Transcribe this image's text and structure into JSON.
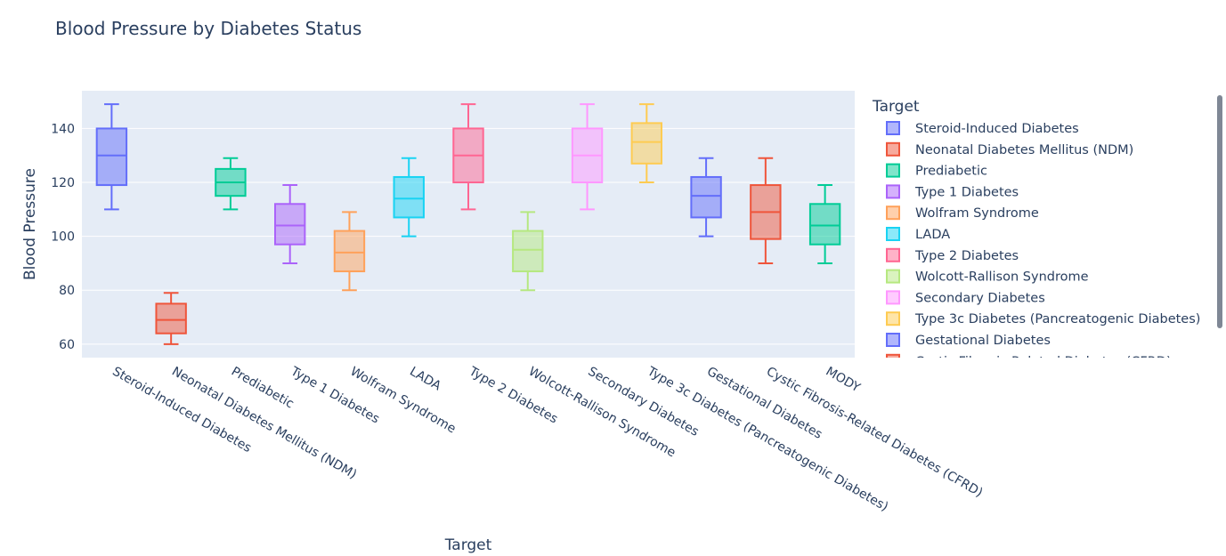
{
  "chart_data": {
    "type": "box",
    "title": "Blood Pressure by Diabetes Status",
    "xlabel": "Target",
    "ylabel": "Blood Pressure",
    "ylim": [
      55,
      154
    ],
    "yticks": [
      60,
      80,
      100,
      120,
      140
    ],
    "grid": true,
    "legend": {
      "title": "Target",
      "placement": "right"
    },
    "series": [
      {
        "name": "Steroid-Induced Diabetes",
        "color": "#636efa",
        "min": 110,
        "q1": 119,
        "median": 130,
        "q3": 140,
        "max": 149
      },
      {
        "name": "Neonatal Diabetes Mellitus (NDM)",
        "color": "#EF553B",
        "min": 60,
        "q1": 64,
        "median": 69,
        "q3": 75,
        "max": 79
      },
      {
        "name": "Prediabetic",
        "color": "#00cc96",
        "min": 110,
        "q1": 115,
        "median": 120,
        "q3": 125,
        "max": 129
      },
      {
        "name": "Type 1 Diabetes",
        "color": "#ab63fa",
        "min": 90,
        "q1": 97,
        "median": 104,
        "q3": 112,
        "max": 119
      },
      {
        "name": "Wolfram Syndrome",
        "color": "#FFA15A",
        "min": 80,
        "q1": 87,
        "median": 94,
        "q3": 102,
        "max": 109
      },
      {
        "name": "LADA",
        "color": "#19d3f3",
        "min": 100,
        "q1": 107,
        "median": 114,
        "q3": 122,
        "max": 129
      },
      {
        "name": "Type 2 Diabetes",
        "color": "#FF6692",
        "min": 110,
        "q1": 120,
        "median": 130,
        "q3": 140,
        "max": 149
      },
      {
        "name": "Wolcott-Rallison Syndrome",
        "color": "#B6E880",
        "min": 80,
        "q1": 87,
        "median": 95,
        "q3": 102,
        "max": 109
      },
      {
        "name": "Secondary Diabetes",
        "color": "#FF97FF",
        "min": 110,
        "q1": 120,
        "median": 130,
        "q3": 140,
        "max": 149
      },
      {
        "name": "Type 3c Diabetes (Pancreatogenic Diabetes)",
        "color": "#FECB52",
        "min": 120,
        "q1": 127,
        "median": 135,
        "q3": 142,
        "max": 149
      },
      {
        "name": "Gestational Diabetes",
        "color": "#636efa",
        "min": 100,
        "q1": 107,
        "median": 115,
        "q3": 122,
        "max": 129
      },
      {
        "name": "Cystic Fibrosis-Related Diabetes (CFRD)",
        "color": "#EF553B",
        "min": 90,
        "q1": 99,
        "median": 109,
        "q3": 119,
        "max": 129
      },
      {
        "name": "MODY",
        "color": "#00cc96",
        "min": 90,
        "q1": 97,
        "median": 104,
        "q3": 112,
        "max": 119
      }
    ]
  }
}
